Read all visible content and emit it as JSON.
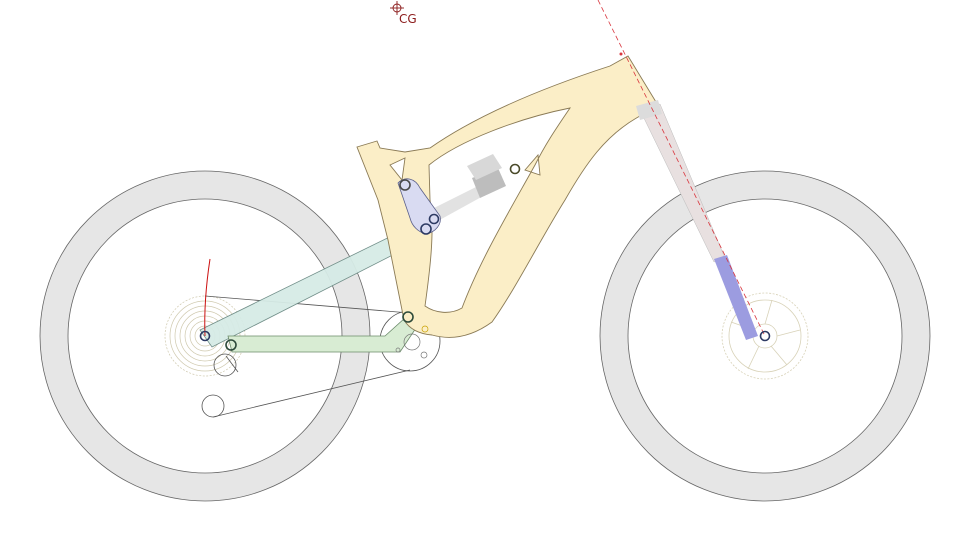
{
  "cg": {
    "label": "CG",
    "icon": "crosshair-icon",
    "color": "#8b1a1a"
  },
  "colors": {
    "frame": "#fbeec7",
    "frame_stroke": "#8a7a55",
    "rocker": "#d9dbf2",
    "seatstay": "#d6ebe6",
    "chainstay": "#d8ecd3",
    "tire": "#e6e6e6",
    "shock": "#cfcfcf",
    "fork_lower": "#9c9ce0",
    "pivot": "#2d3a63",
    "steer_axis": "#d9363e",
    "force_curve": "#cc1111"
  }
}
